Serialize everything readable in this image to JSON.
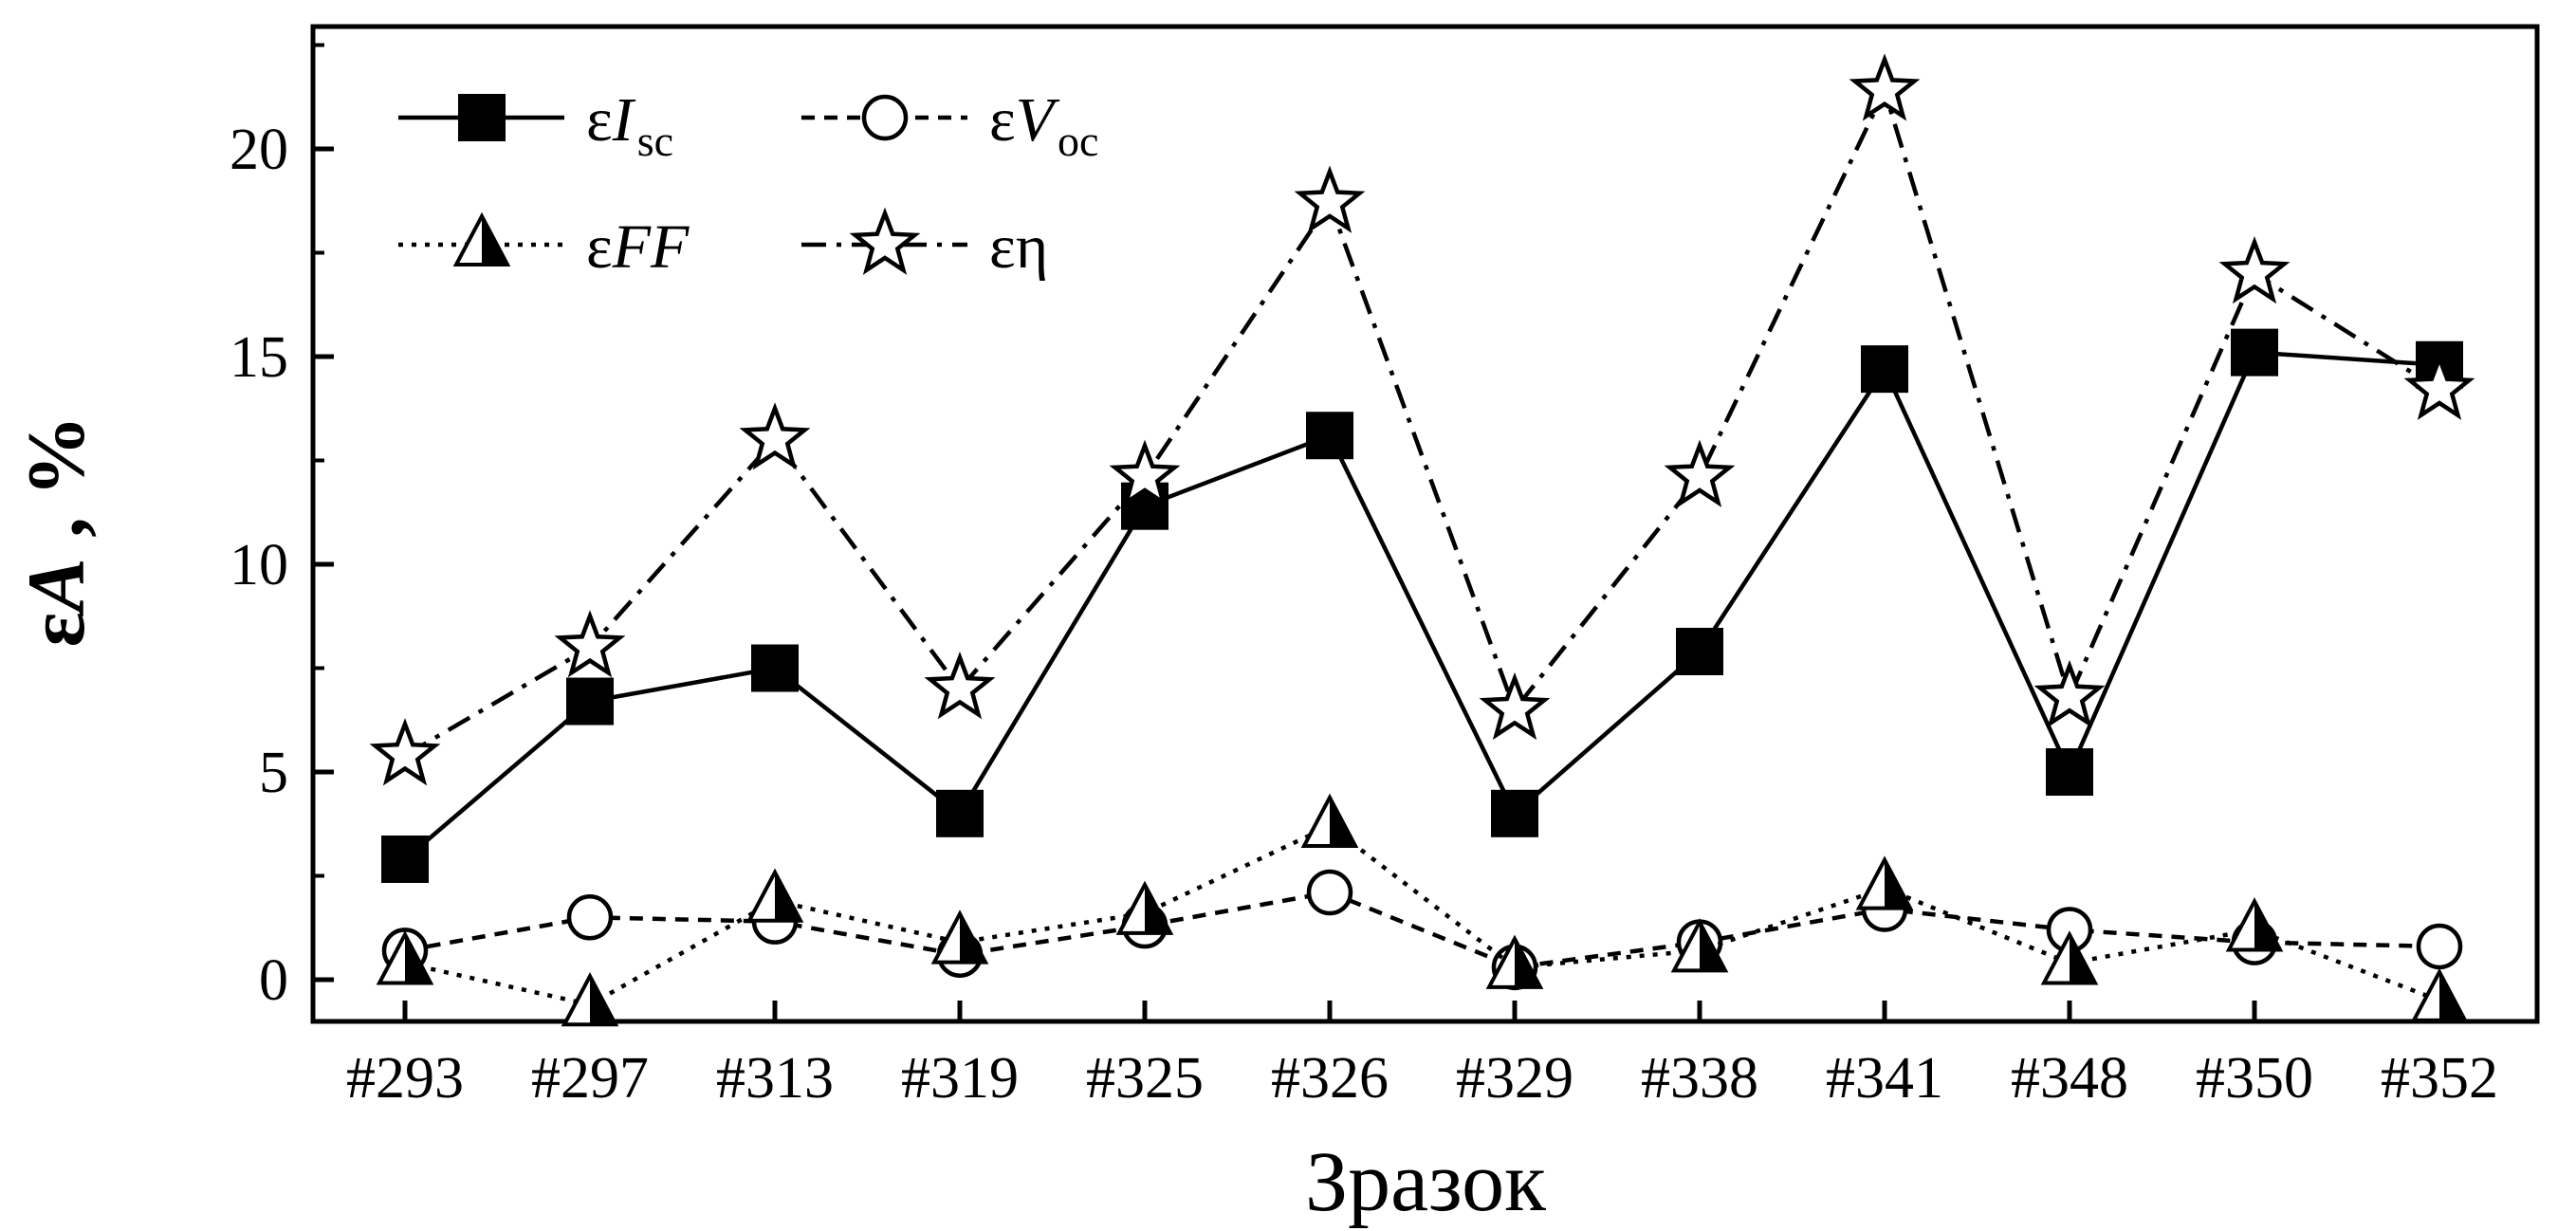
{
  "chart_data": {
    "type": "line",
    "xlabel": "Зразок",
    "ylabel": {
      "prefix": "ε",
      "var": "A",
      "suffix": " , %"
    },
    "categories": [
      "#293",
      "#297",
      "#313",
      "#319",
      "#325",
      "#326",
      "#329",
      "#338",
      "#341",
      "#348",
      "#350",
      "#352"
    ],
    "ylim": [
      -1,
      22.8
    ],
    "yticks": [
      0,
      5,
      10,
      15,
      20
    ],
    "grid": false,
    "legend": "top-left",
    "series": [
      {
        "id": "isc",
        "name": {
          "prefix": "ε",
          "var": "I",
          "sub": "SC"
        },
        "marker": "square",
        "line": "solid",
        "values": [
          2.9,
          6.7,
          7.5,
          4.0,
          11.4,
          13.1,
          4.0,
          7.9,
          14.7,
          5.0,
          15.1,
          14.8
        ]
      },
      {
        "id": "voc",
        "name": {
          "prefix": "ε",
          "var": "V",
          "sub": "OC"
        },
        "marker": "circle",
        "line": "dashed",
        "values": [
          0.7,
          1.5,
          1.4,
          0.6,
          1.3,
          2.1,
          0.3,
          0.9,
          1.7,
          1.2,
          0.9,
          0.8
        ]
      },
      {
        "id": "ff",
        "name": {
          "prefix": "ε",
          "var": "FF",
          "sub": ""
        },
        "marker": "triangle",
        "line": "dotted",
        "values": [
          0.4,
          -0.6,
          1.9,
          0.9,
          1.6,
          3.7,
          0.3,
          0.7,
          2.2,
          0.4,
          1.2,
          -0.5
        ]
      },
      {
        "id": "eta",
        "name": {
          "prefix": "ε",
          "var": "",
          "sub": "",
          "greek": "η"
        },
        "marker": "star",
        "line": "dashdot",
        "values": [
          5.4,
          8.0,
          13.0,
          7.0,
          12.1,
          18.7,
          6.5,
          12.1,
          21.4,
          6.8,
          17.0,
          14.2
        ]
      }
    ]
  }
}
